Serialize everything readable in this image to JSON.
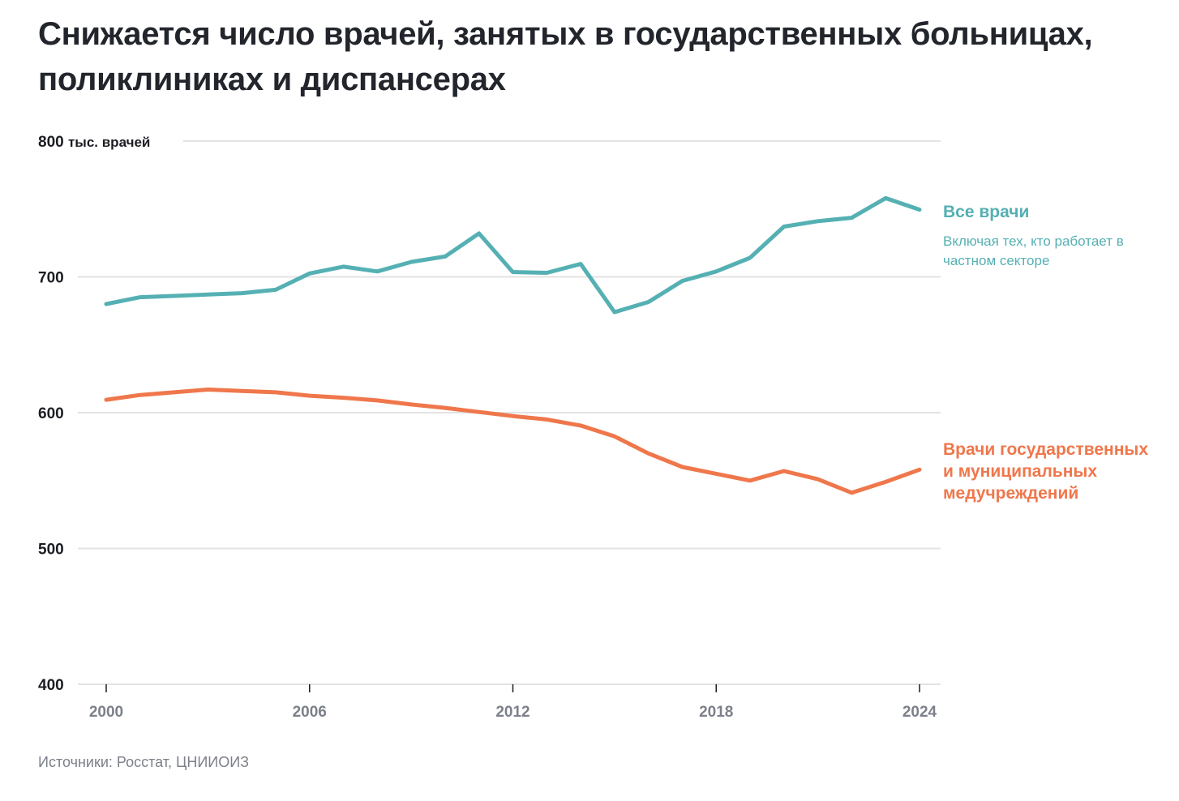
{
  "title_lines": [
    "Снижается число врачей, занятых в государственных больницах,",
    "поликлиниках и диспансерах"
  ],
  "source": "Источники: Росстат, ЦНИИОИЗ",
  "chart_data": {
    "type": "line",
    "title": "Снижается число врачей, занятых в государственных больницах, поликлиниках и диспансерах",
    "xlabel": "",
    "ylabel": "тыс. врачей",
    "xlim": [
      2000,
      2024
    ],
    "ylim": [
      400,
      800
    ],
    "grid": true,
    "x_ticks": [
      2000,
      2006,
      2012,
      2018,
      2024
    ],
    "x_tick_labels": [
      "2000",
      "2006",
      "2012",
      "2018",
      "2024"
    ],
    "y_ticks": [
      400,
      500,
      600,
      700,
      800
    ],
    "y_tick_labels": [
      "400",
      "500",
      "600",
      "700",
      "800 тыс. врачей"
    ],
    "x": [
      2000,
      2001,
      2002,
      2003,
      2004,
      2005,
      2006,
      2007,
      2008,
      2009,
      2010,
      2011,
      2012,
      2013,
      2014,
      2015,
      2016,
      2017,
      2018,
      2019,
      2020,
      2021,
      2022,
      2023,
      2024
    ],
    "series": [
      {
        "name": "Все врачи",
        "subtitle": "Включая тех, кто работает в частном секторе",
        "color": "#55b0b3",
        "values": [
          680,
          685,
          686,
          687,
          688,
          690.5,
          702.5,
          707.5,
          704,
          711,
          715,
          732,
          703.5,
          703,
          709.5,
          674,
          681.5,
          697,
          704,
          714,
          737,
          741,
          743.5,
          758,
          749.5
        ]
      },
      {
        "name": "Врачи государственных и муниципальных медучреждений",
        "name_lines": [
          "Врачи государственных",
          "и муниципальных",
          "медучреждений"
        ],
        "color": "#ef774b",
        "values": [
          609.5,
          613,
          615,
          617,
          616,
          615,
          612.5,
          611,
          609,
          606,
          603.5,
          600.5,
          597.5,
          595,
          590.5,
          582.5,
          570,
          560,
          555,
          550,
          557,
          551,
          541,
          549,
          558
        ]
      }
    ],
    "legend": "direct-labels-right"
  }
}
